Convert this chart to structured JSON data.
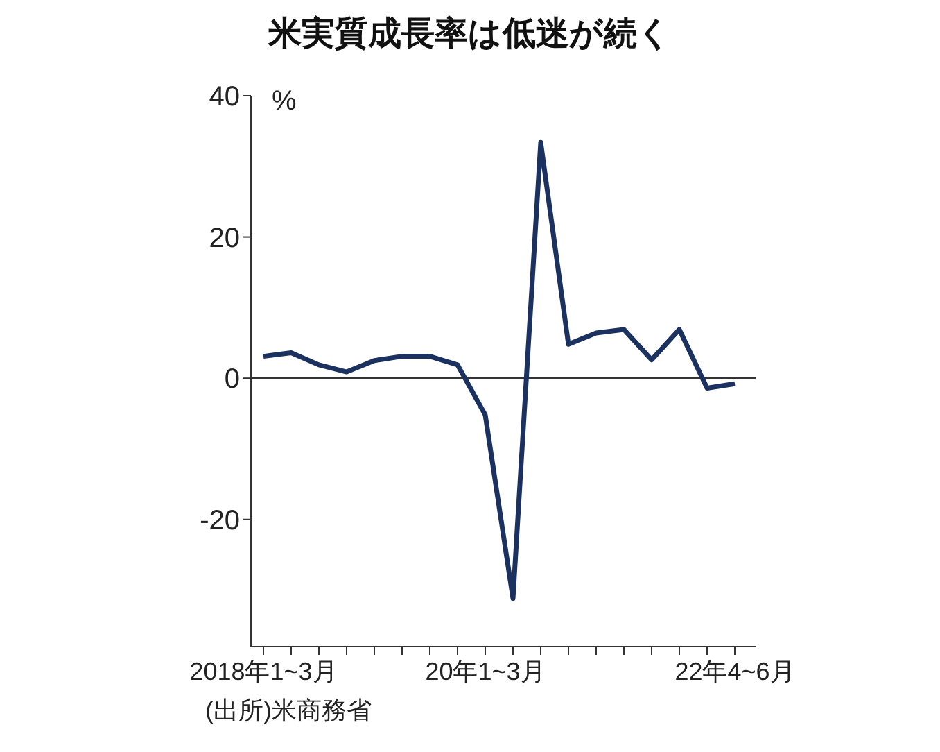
{
  "chart_data": {
    "type": "line",
    "title": "米実質成長率は低迷が続く",
    "ylabel": "%",
    "categories": [
      "2018年1~3月",
      null,
      null,
      null,
      null,
      null,
      null,
      null,
      "20年1~3月",
      null,
      null,
      null,
      null,
      null,
      null,
      null,
      null,
      "22年4~6月"
    ],
    "series": [
      {
        "color": "#1b3160",
        "values": [
          3.1,
          3.6,
          1.9,
          0.9,
          2.5,
          3.1,
          3.1,
          1.9,
          -5.2,
          -31.2,
          33.4,
          4.8,
          6.4,
          6.9,
          2.6,
          6.9,
          -1.4,
          -0.8
        ]
      }
    ],
    "ylim": [
      -38,
      40
    ],
    "yticks": [
      -20,
      0,
      20,
      40
    ],
    "grid": false,
    "legend": false,
    "marker": "none",
    "line_style": "solid",
    "ref_lines": [
      {
        "axis": "y",
        "value": 0,
        "color": "#333333"
      }
    ],
    "annotations": [
      "(出所)米商務省"
    ]
  }
}
